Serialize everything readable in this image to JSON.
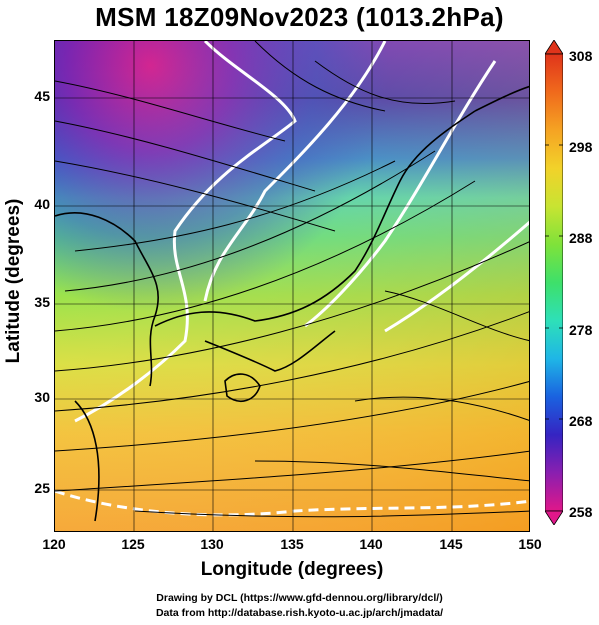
{
  "title": "MSM 18Z09Nov2023 (1013.2hPa)",
  "axes": {
    "xlabel": "Longitude (degrees)",
    "ylabel": "Latitude  (degrees)",
    "xticks": [
      "120",
      "125",
      "130",
      "135",
      "140",
      "145",
      "150"
    ],
    "yticks": [
      "45",
      "40",
      "35",
      "30",
      "25"
    ],
    "x_range": [
      120,
      150
    ],
    "y_range": [
      22.4,
      47.6
    ]
  },
  "colorbar": {
    "min": 258,
    "max": 308,
    "ticks": [
      "308",
      "298",
      "288",
      "278",
      "268",
      "258"
    ],
    "colors": [
      "#e0178a",
      "#8a1fb0",
      "#3524c2",
      "#1a62e0",
      "#1fb6e6",
      "#2ee0b8",
      "#3ee06a",
      "#7fe23a",
      "#c8e432",
      "#f2d22a",
      "#f5a323",
      "#f06a1c",
      "#e0341b"
    ]
  },
  "footer": {
    "line1": "Drawing by DCL (https://www.gfd-dennou.org/library/dcl/)",
    "line2": "Data from http://database.rish.kyoto-u.ac.jp/arch/jmadata/"
  }
}
